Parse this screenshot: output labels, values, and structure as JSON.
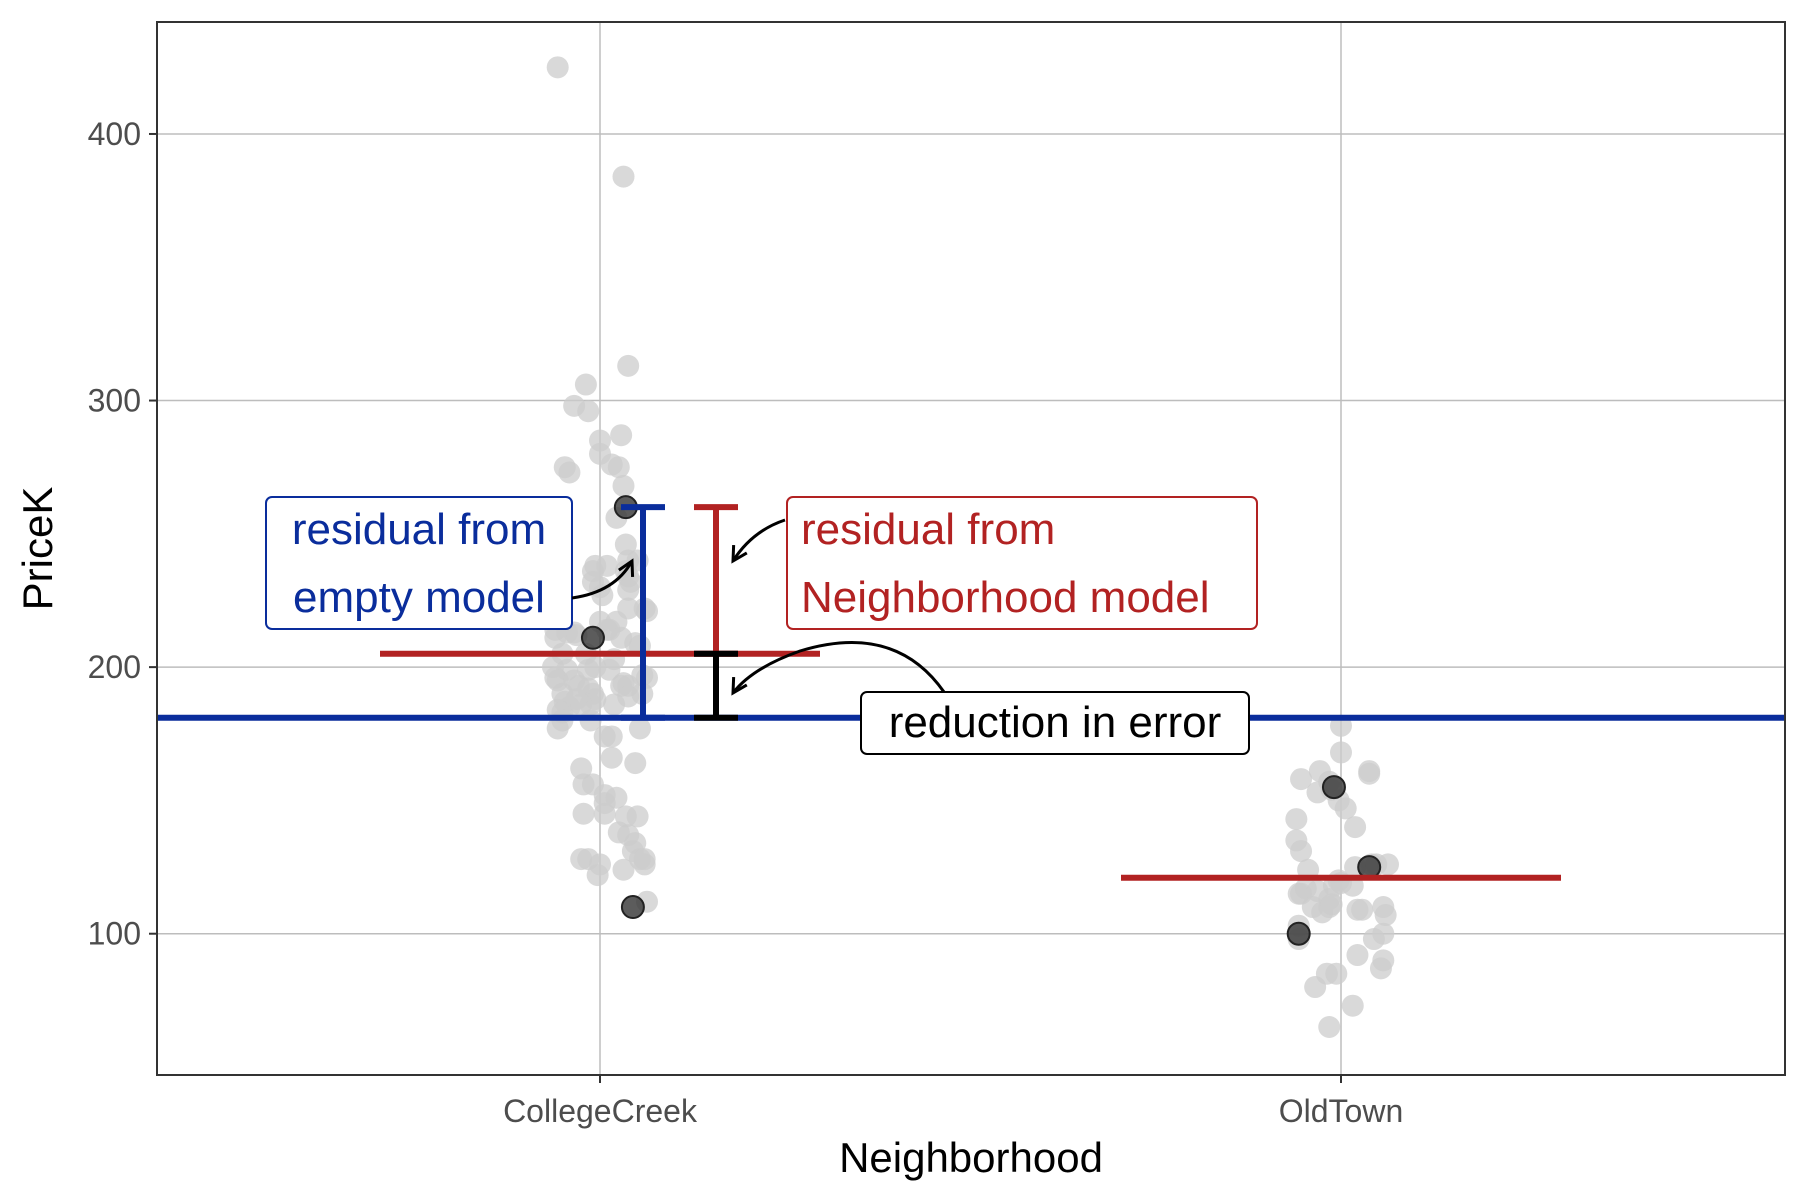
{
  "chart_data": {
    "type": "scatter",
    "xlabel": "Neighborhood",
    "ylabel": "PriceK",
    "categories": [
      "CollegeCreek",
      "OldTown"
    ],
    "ylim": [
      47,
      442
    ],
    "yticks": [
      100,
      200,
      300,
      400
    ],
    "grid": true,
    "colors": {
      "points": "#cccccc",
      "highlight": "#333333",
      "empty_model": "#0a2d9c",
      "neighborhood_model": "#b22222",
      "reduction": "#000000"
    },
    "empty_model_mean": 181,
    "group_means": [
      {
        "category": "CollegeCreek",
        "value": 205
      },
      {
        "category": "OldTown",
        "value": 121
      }
    ],
    "series": [
      {
        "category": "CollegeCreek",
        "points": [
          [
            -0.18,
            425
          ],
          [
            0.1,
            384
          ],
          [
            0.12,
            313
          ],
          [
            -0.06,
            306
          ],
          [
            -0.11,
            298
          ],
          [
            -0.05,
            296
          ],
          [
            0.0,
            285
          ],
          [
            0.09,
            287
          ],
          [
            0.0,
            280
          ],
          [
            -0.15,
            275
          ],
          [
            -0.13,
            273
          ],
          [
            0.05,
            276
          ],
          [
            0.08,
            275
          ],
          [
            0.1,
            268
          ],
          [
            0.07,
            256
          ],
          [
            0.11,
            246
          ],
          [
            0.12,
            240
          ],
          [
            0.16,
            240
          ],
          [
            0.11,
            236
          ],
          [
            0.12,
            234
          ],
          [
            0.13,
            232
          ],
          [
            -0.02,
            238
          ],
          [
            -0.03,
            236
          ],
          [
            0.03,
            238
          ],
          [
            -0.03,
            232
          ],
          [
            0.0,
            230
          ],
          [
            0.01,
            227
          ],
          [
            0.12,
            229
          ],
          [
            0.12,
            222
          ],
          [
            0.19,
            222
          ],
          [
            0.2,
            221
          ],
          [
            0.0,
            217
          ],
          [
            0.07,
            217
          ],
          [
            0.03,
            214
          ],
          [
            0.04,
            214
          ],
          [
            0.09,
            211
          ],
          [
            0.15,
            209
          ],
          [
            -0.19,
            214
          ],
          [
            -0.14,
            213
          ],
          [
            -0.1,
            212
          ],
          [
            -0.11,
            213
          ],
          [
            -0.19,
            211
          ],
          [
            -0.16,
            205
          ],
          [
            -0.06,
            205
          ],
          [
            -0.2,
            200
          ],
          [
            -0.14,
            199
          ],
          [
            -0.02,
            200
          ],
          [
            0.06,
            203
          ],
          [
            0.04,
            199
          ],
          [
            0.17,
            208
          ],
          [
            0.18,
            197
          ],
          [
            0.2,
            196
          ],
          [
            0.09,
            193
          ],
          [
            0.1,
            194
          ],
          [
            0.12,
            193
          ],
          [
            0.12,
            189
          ],
          [
            0.18,
            190
          ],
          [
            -0.19,
            196
          ],
          [
            -0.18,
            195
          ],
          [
            -0.11,
            195
          ],
          [
            -0.05,
            199
          ],
          [
            -0.09,
            193
          ],
          [
            -0.05,
            192
          ],
          [
            -0.03,
            190
          ],
          [
            -0.02,
            188
          ],
          [
            -0.04,
            186
          ],
          [
            -0.16,
            190
          ],
          [
            -0.15,
            187
          ],
          [
            -0.13,
            185
          ],
          [
            -0.18,
            184
          ],
          [
            -0.16,
            183
          ],
          [
            -0.1,
            188
          ],
          [
            -0.08,
            186
          ],
          [
            -0.04,
            180
          ],
          [
            0.06,
            186
          ],
          [
            -0.16,
            180
          ],
          [
            -0.18,
            177
          ],
          [
            0.02,
            174
          ],
          [
            0.05,
            174
          ],
          [
            0.17,
            177
          ],
          [
            0.05,
            166
          ],
          [
            0.15,
            164
          ],
          [
            -0.08,
            162
          ],
          [
            -0.07,
            156
          ],
          [
            -0.03,
            156
          ],
          [
            0.02,
            152
          ],
          [
            0.02,
            149
          ],
          [
            0.07,
            151
          ],
          [
            0.11,
            144
          ],
          [
            0.16,
            144
          ],
          [
            0.02,
            145
          ],
          [
            -0.07,
            145
          ],
          [
            0.08,
            138
          ],
          [
            0.12,
            137
          ],
          [
            0.15,
            134
          ],
          [
            0.14,
            131
          ],
          [
            0.17,
            128
          ],
          [
            0.19,
            126
          ],
          [
            0.19,
            128
          ],
          [
            -0.08,
            128
          ],
          [
            -0.05,
            128
          ],
          [
            0.0,
            126
          ],
          [
            -0.01,
            122
          ],
          [
            0.1,
            124
          ],
          [
            0.2,
            112
          ]
        ],
        "highlighted": [
          [
            0.11,
            260
          ],
          [
            -0.03,
            211
          ],
          [
            0.14,
            110
          ]
        ]
      },
      {
        "category": "OldTown",
        "points": [
          [
            0.0,
            178
          ],
          [
            0.0,
            168
          ],
          [
            -0.17,
            158
          ],
          [
            -0.09,
            161
          ],
          [
            -0.1,
            153
          ],
          [
            -0.05,
            157
          ],
          [
            -0.04,
            154
          ],
          [
            -0.01,
            150
          ],
          [
            0.02,
            147
          ],
          [
            0.06,
            140
          ],
          [
            0.12,
            161
          ],
          [
            0.12,
            160
          ],
          [
            -0.19,
            143
          ],
          [
            -0.19,
            135
          ],
          [
            -0.17,
            131
          ],
          [
            -0.14,
            124
          ],
          [
            -0.15,
            117
          ],
          [
            -0.18,
            115
          ],
          [
            -0.17,
            115
          ],
          [
            -0.1,
            116
          ],
          [
            -0.12,
            110
          ],
          [
            -0.08,
            108
          ],
          [
            -0.05,
            113
          ],
          [
            -0.05,
            110
          ],
          [
            -0.04,
            111
          ],
          [
            -0.03,
            118
          ],
          [
            -0.01,
            120
          ],
          [
            0.0,
            119
          ],
          [
            0.06,
            125
          ],
          [
            0.13,
            126
          ],
          [
            0.15,
            126
          ],
          [
            0.2,
            126
          ],
          [
            0.05,
            118
          ],
          [
            0.07,
            109
          ],
          [
            0.09,
            109
          ],
          [
            0.18,
            100
          ],
          [
            0.14,
            98
          ],
          [
            0.18,
            110
          ],
          [
            0.19,
            107
          ],
          [
            -0.18,
            98
          ],
          [
            -0.18,
            103
          ],
          [
            -0.11,
            80
          ],
          [
            -0.06,
            85
          ],
          [
            -0.02,
            85
          ],
          [
            -0.05,
            65
          ],
          [
            0.07,
            92
          ],
          [
            0.18,
            90
          ],
          [
            0.17,
            87
          ],
          [
            0.05,
            73
          ]
        ],
        "highlighted": [
          [
            -0.03,
            155
          ],
          [
            -0.18,
            100
          ],
          [
            0.12,
            125
          ]
        ]
      }
    ],
    "annotations": [
      {
        "id": "empty",
        "line1": "residual from",
        "line2": "empty model"
      },
      {
        "id": "neighborhood",
        "line1": "residual from",
        "line2": "Neighborhood model"
      },
      {
        "id": "reduction",
        "line1": "reduction in error"
      }
    ],
    "residual_point": {
      "category": "CollegeCreek",
      "value": 260
    }
  }
}
